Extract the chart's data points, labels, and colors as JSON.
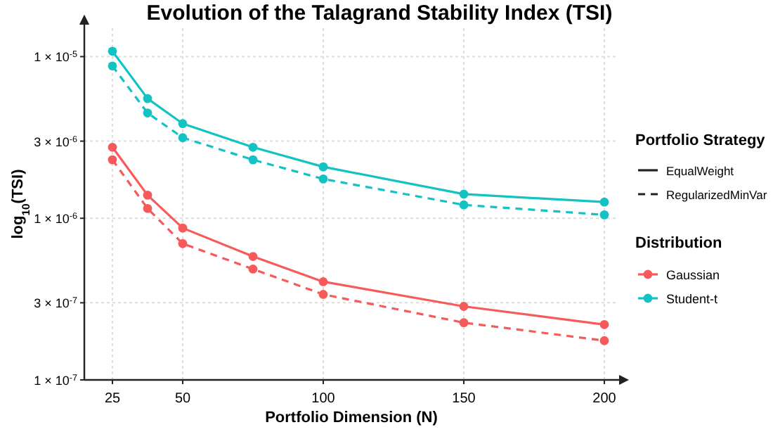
{
  "chart_data": {
    "type": "line",
    "title": "Evolution of the Talagrand Stability Index (TSI)",
    "xlabel": "Portfolio Dimension (N)",
    "ylabel": "log$_{10}$(TSI)",
    "legend_title": "Distribution",
    "annotations": [
      "Portfolio Strategy",
      "EqualWeight",
      "RegularizedMinVar"
    ],
    "x": [
      25,
      37.5,
      50,
      75,
      100,
      150,
      200
    ],
    "xlim": [
      15,
      205
    ],
    "xticks": [
      25,
      50,
      100,
      150,
      200
    ],
    "ylim": [
      1e-07,
      1.5e-05
    ],
    "yticks": [
      {
        "value": 1e-05,
        "label": "1 × 10$^{-5}$"
      },
      {
        "value": 3e-06,
        "label": "3 × 10$^{-6}$"
      },
      {
        "value": 1e-06,
        "label": "1 × 10$^{-6}$"
      },
      {
        "value": 3e-07,
        "label": "3 × 10$^{-7}$"
      },
      {
        "value": 1e-07,
        "label": "1 × 10$^{-7}$"
      }
    ],
    "log": "y",
    "grid": true,
    "legend": "right",
    "marker": "circle",
    "series": [
      {
        "name": "Gaussian",
        "color": "#f65a5a",
        "line_style": "solid",
        "values": [
          2.75e-06,
          1.39e-06,
          8.7e-07,
          5.8e-07,
          4.05e-07,
          2.85e-07,
          2.2e-07
        ]
      },
      {
        "name": "Student-t",
        "color": "#13c2c2",
        "line_style": "solid",
        "values": [
          1.08e-05,
          5.5e-06,
          3.85e-06,
          2.75e-06,
          2.08e-06,
          1.41e-06,
          1.26e-06
        ]
      },
      {
        "color": "#f65a5a",
        "line_style": "dashed",
        "values": [
          2.3e-06,
          1.15e-06,
          6.97e-07,
          4.85e-07,
          3.38e-07,
          2.26e-07,
          1.75e-07
        ]
      },
      {
        "color": "#13c2c2",
        "line_style": "dashed",
        "values": [
          8.75e-06,
          4.48e-06,
          3.15e-06,
          2.3e-06,
          1.75e-06,
          1.21e-06,
          1.05e-06
        ]
      }
    ]
  }
}
